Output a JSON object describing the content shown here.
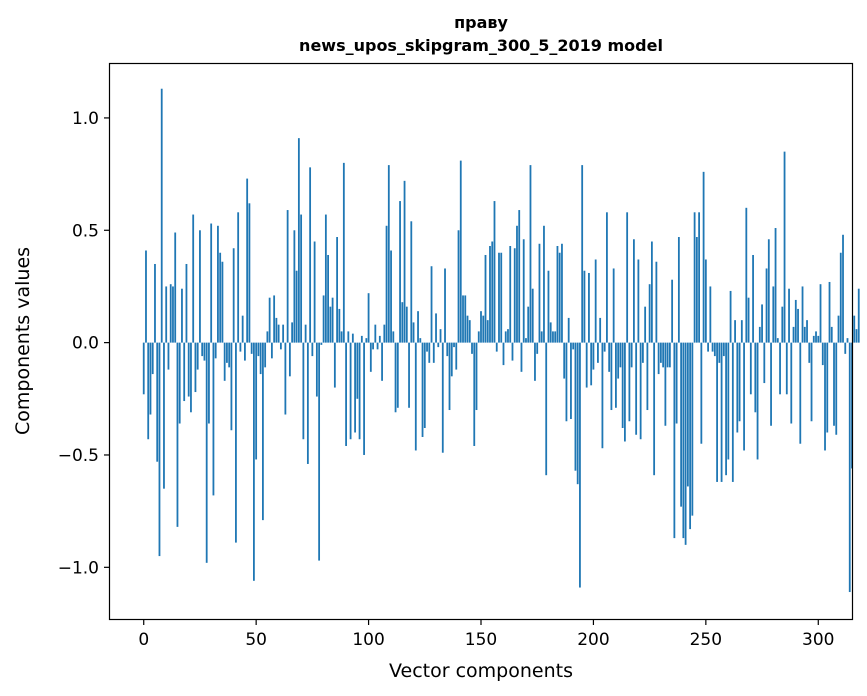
{
  "chart_data": {
    "type": "bar",
    "title_line1": "праву",
    "title_line2": "news_upos_skipgram_300_5_2019 model",
    "xlabel": "Vector components",
    "ylabel": "Components values",
    "xlim": [
      -15,
      315
    ],
    "ylim": [
      -1.23,
      1.24
    ],
    "xticks": [
      0,
      50,
      100,
      150,
      200,
      250,
      300
    ],
    "yticks": [
      -1.0,
      -0.5,
      0.0,
      0.5,
      1.0
    ],
    "xtick_labels": [
      "0",
      "50",
      "100",
      "150",
      "200",
      "250",
      "300"
    ],
    "ytick_labels": [
      "−1.0",
      "−0.5",
      "0.0",
      "0.5",
      "1.0"
    ],
    "bar_color": "#1f77b4",
    "values": [
      -0.23,
      0.41,
      -0.43,
      -0.32,
      -0.14,
      0.35,
      -0.53,
      -0.95,
      1.13,
      -0.65,
      0.25,
      -0.12,
      0.26,
      0.25,
      0.49,
      -0.82,
      -0.36,
      0.24,
      -0.26,
      0.35,
      -0.24,
      -0.31,
      0.57,
      -0.22,
      -0.12,
      0.5,
      -0.06,
      -0.08,
      -0.98,
      -0.36,
      0.53,
      -0.68,
      -0.07,
      0.52,
      0.4,
      0.36,
      -0.17,
      -0.09,
      -0.11,
      -0.39,
      0.42,
      -0.89,
      0.58,
      -0.04,
      0.12,
      -0.08,
      0.73,
      0.62,
      -0.05,
      -1.06,
      -0.52,
      -0.06,
      -0.14,
      -0.79,
      -0.11,
      0.05,
      0.2,
      -0.07,
      0.21,
      0.11,
      0.08,
      -0.03,
      0.08,
      -0.32,
      0.59,
      -0.15,
      0.09,
      0.5,
      0.32,
      0.91,
      0.57,
      -0.43,
      0.08,
      -0.54,
      0.78,
      -0.06,
      0.45,
      -0.24,
      -0.97,
      -0.01,
      0.21,
      0.57,
      0.39,
      0.16,
      0.2,
      -0.2,
      0.47,
      0.15,
      0.05,
      0.8,
      -0.46,
      0.05,
      -0.43,
      0.04,
      -0.4,
      -0.25,
      -0.43,
      0.03,
      -0.5,
      0.02,
      0.22,
      -0.13,
      -0.03,
      0.08,
      -0.03,
      0.03,
      -0.17,
      0.08,
      0.52,
      0.79,
      0.41,
      0.05,
      -0.31,
      -0.29,
      0.63,
      0.18,
      0.72,
      0.16,
      -0.29,
      0.54,
      0.09,
      -0.48,
      0.14,
      0.02,
      -0.42,
      -0.38,
      -0.04,
      -0.09,
      0.34,
      -0.09,
      0.13,
      -0.02,
      0.06,
      -0.49,
      0.33,
      -0.06,
      -0.3,
      -0.15,
      -0.02,
      -0.12,
      0.5,
      0.81,
      0.21,
      0.21,
      0.12,
      0.1,
      -0.05,
      -0.46,
      -0.3,
      0.05,
      0.14,
      0.12,
      0.39,
      0.1,
      0.43,
      0.45,
      0.63,
      -0.04,
      0.4,
      0.4,
      -0.1,
      0.05,
      0.06,
      0.43,
      -0.08,
      0.42,
      0.52,
      0.59,
      -0.13,
      0.46,
      0.02,
      0.16,
      0.79,
      0.24,
      -0.17,
      -0.05,
      0.44,
      0.05,
      0.52,
      -0.59,
      0.32,
      0.09,
      0.05,
      0.05,
      0.43,
      0.4,
      0.44,
      -0.16,
      -0.35,
      0.11,
      -0.34,
      -0.03,
      -0.57,
      -0.63,
      -1.09,
      0.79,
      0.32,
      -0.2,
      0.31,
      -0.19,
      -0.12,
      0.37,
      -0.09,
      0.11,
      -0.47,
      -0.04,
      0.58,
      -0.13,
      -0.3,
      0.33,
      -0.29,
      -0.16,
      -0.11,
      -0.38,
      -0.44,
      0.58,
      -0.35,
      -0.11,
      0.46,
      -0.41,
      0.37,
      -0.43,
      -0.09,
      0.16,
      -0.3,
      0.26,
      0.45,
      -0.59,
      0.36,
      -0.14,
      -0.09,
      -0.11,
      -0.37,
      -0.11,
      -0.11,
      0.28,
      -0.87,
      -0.36,
      0.47,
      -0.73,
      -0.87,
      -0.9,
      -0.64,
      -0.83,
      -0.77,
      0.58,
      0.47,
      0.58,
      -0.45,
      0.76,
      0.37,
      -0.04,
      0.25,
      -0.04,
      -0.06,
      -0.62,
      -0.09,
      -0.62,
      -0.06,
      -0.59,
      -0.52,
      0.23,
      -0.62,
      0.1,
      -0.4,
      -0.35,
      0.1,
      -0.48,
      0.6,
      0.2,
      -0.23,
      0.39,
      -0.31,
      -0.52,
      0.07,
      0.17,
      -0.18,
      0.33,
      0.46,
      -0.37,
      0.25,
      0.51,
      0.02,
      -0.23,
      0.16,
      0.85,
      -0.23,
      0.24,
      -0.36,
      0.07,
      0.19,
      0.15,
      -0.45,
      0.25,
      0.07,
      0.1,
      -0.09,
      -0.35,
      0.03,
      0.05,
      0.03,
      0.26,
      -0.1,
      -0.48,
      -0.4,
      0.27,
      0.07,
      -0.37,
      -0.41,
      0.12,
      0.4,
      0.48,
      -0.05,
      0.02,
      -1.11,
      -0.56,
      0.12,
      0.06,
      0.24
    ],
    "ylim_note": ""
  }
}
